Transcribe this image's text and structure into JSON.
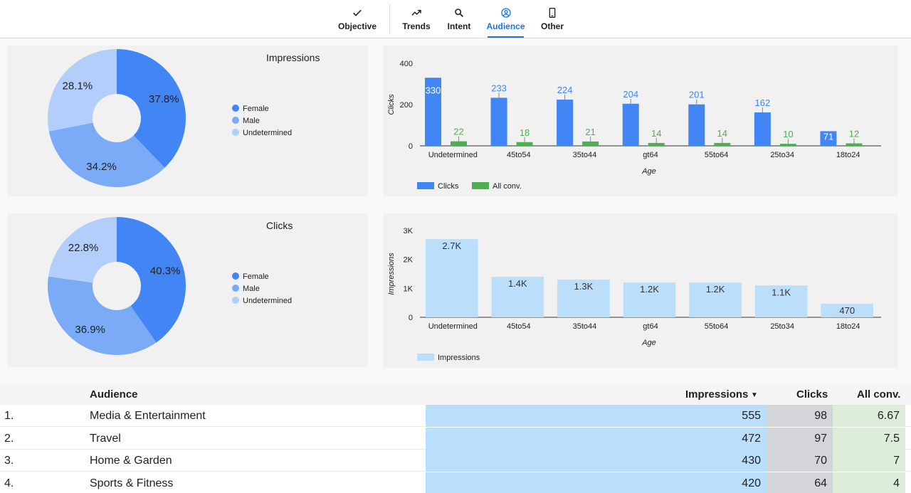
{
  "nav": {
    "tabs": [
      {
        "label": "Objective",
        "icon": "check-icon"
      },
      {
        "label": "Trends",
        "icon": "trending-up-icon"
      },
      {
        "label": "Intent",
        "icon": "search-icon"
      },
      {
        "label": "Audience",
        "icon": "account-circle-icon",
        "active": true
      },
      {
        "label": "Other",
        "icon": "smartphone-icon"
      }
    ]
  },
  "colors": {
    "female": "#4285f4",
    "male": "#7baaf7",
    "undetermined": "#b3cefa",
    "clicks_bar": "#4285f4",
    "conv_bar": "#4caf50",
    "impressions_bar": "#bbdefb",
    "accent": "#1a73e8"
  },
  "chart_data": [
    {
      "type": "pie",
      "title": "Impressions",
      "donut": true,
      "labels": [
        "Female",
        "Male",
        "Undetermined"
      ],
      "values": [
        37.8,
        34.2,
        28.1
      ],
      "value_labels": [
        "37.8%",
        "34.2%",
        "28.1%"
      ],
      "legend": "right"
    },
    {
      "type": "bar",
      "xlabel": "Age",
      "ylabel": "Clicks",
      "categories": [
        "Undetermined",
        "45to54",
        "35to44",
        "gt64",
        "55to64",
        "25to34",
        "18to24"
      ],
      "series": [
        {
          "name": "Clicks",
          "values": [
            330,
            233,
            224,
            204,
            201,
            162,
            71
          ]
        },
        {
          "name": "All conv.",
          "values": [
            22,
            18,
            21,
            14,
            14,
            10,
            12
          ]
        }
      ],
      "ylim": [
        0,
        400
      ],
      "yticks": [
        "0",
        "200",
        "400"
      ],
      "legend": "bottom-left"
    },
    {
      "type": "pie",
      "title": "Clicks",
      "donut": true,
      "labels": [
        "Female",
        "Male",
        "Undetermined"
      ],
      "values": [
        40.3,
        36.9,
        22.8
      ],
      "value_labels": [
        "40.3%",
        "36.9%",
        "22.8%"
      ],
      "legend": "right"
    },
    {
      "type": "bar",
      "xlabel": "Age",
      "ylabel": "Impressions",
      "categories": [
        "Undetermined",
        "45to54",
        "35to44",
        "gt64",
        "55to64",
        "25to34",
        "18to24"
      ],
      "series": [
        {
          "name": "Impressions",
          "values": [
            2700,
            1400,
            1300,
            1200,
            1200,
            1100,
            470
          ],
          "labels": [
            "2.7K",
            "1.4K",
            "1.3K",
            "1.2K",
            "1.2K",
            "1.1K",
            "470"
          ]
        }
      ],
      "ylim": [
        0,
        3000
      ],
      "yticks": [
        "0",
        "1K",
        "2K",
        "3K"
      ],
      "legend": "bottom-left"
    }
  ],
  "table": {
    "headers": {
      "audience": "Audience",
      "impressions": "Impressions",
      "sort_indicator": "▼",
      "clicks": "Clicks",
      "conv": "All conv."
    },
    "rows": [
      {
        "rank": "1.",
        "audience": "Media & Entertainment",
        "impressions": "555",
        "clicks": "98",
        "conv": "6.67"
      },
      {
        "rank": "2.",
        "audience": "Travel",
        "impressions": "472",
        "clicks": "97",
        "conv": "7.5"
      },
      {
        "rank": "3.",
        "audience": "Home & Garden",
        "impressions": "430",
        "clicks": "70",
        "conv": "7"
      },
      {
        "rank": "4.",
        "audience": "Sports & Fitness",
        "impressions": "420",
        "clicks": "64",
        "conv": "4"
      }
    ]
  }
}
